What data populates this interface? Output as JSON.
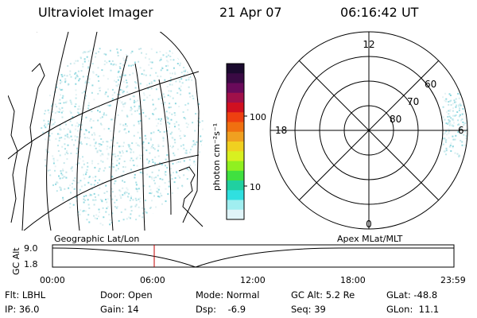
{
  "header": {
    "instrument": "Ultraviolet Imager",
    "date": "21 Apr 07",
    "time": "06:16:42 UT"
  },
  "colorbar": {
    "unit_label": "photon cm⁻²s⁻¹",
    "ticks": [
      "100",
      "10"
    ],
    "colors": [
      "#1a0a2e",
      "#3a0a44",
      "#6a0a5a",
      "#a0104a",
      "#d01020",
      "#ee4010",
      "#f07010",
      "#f0a020",
      "#f0d020",
      "#d8f020",
      "#90f020",
      "#40e040",
      "#20d0a0",
      "#30e0e0",
      "#a0eef0",
      "#e0f4f8"
    ]
  },
  "geo_map": {
    "label": "Geographic Lat/Lon"
  },
  "polar_plot": {
    "label": "Apex  MLat/MLT",
    "mlt_labels": [
      "12",
      "18",
      "6",
      "0"
    ],
    "mlat_labels": [
      "60",
      "70",
      "80"
    ]
  },
  "altitude_plot": {
    "ylabel": "GC Alt",
    "y_ticks": [
      "9.0",
      "1.8"
    ],
    "x_ticks": [
      "00:00",
      "06:00",
      "12:00",
      "18:00",
      "23:59"
    ],
    "marker_time": "06:16:42"
  },
  "status": {
    "flt": "Flt: LBHL",
    "door": "Door: Open",
    "mode": "Mode: Normal",
    "gc_alt": "GC Alt: 5.2 Re",
    "glat": "GLat: -48.8",
    "ip": "IP: 36.0",
    "gain": "Gain: 14",
    "dsp": "Dsp:    -6.9",
    "seq": "Seq: 39",
    "glon": "GLon:  11.1"
  }
}
